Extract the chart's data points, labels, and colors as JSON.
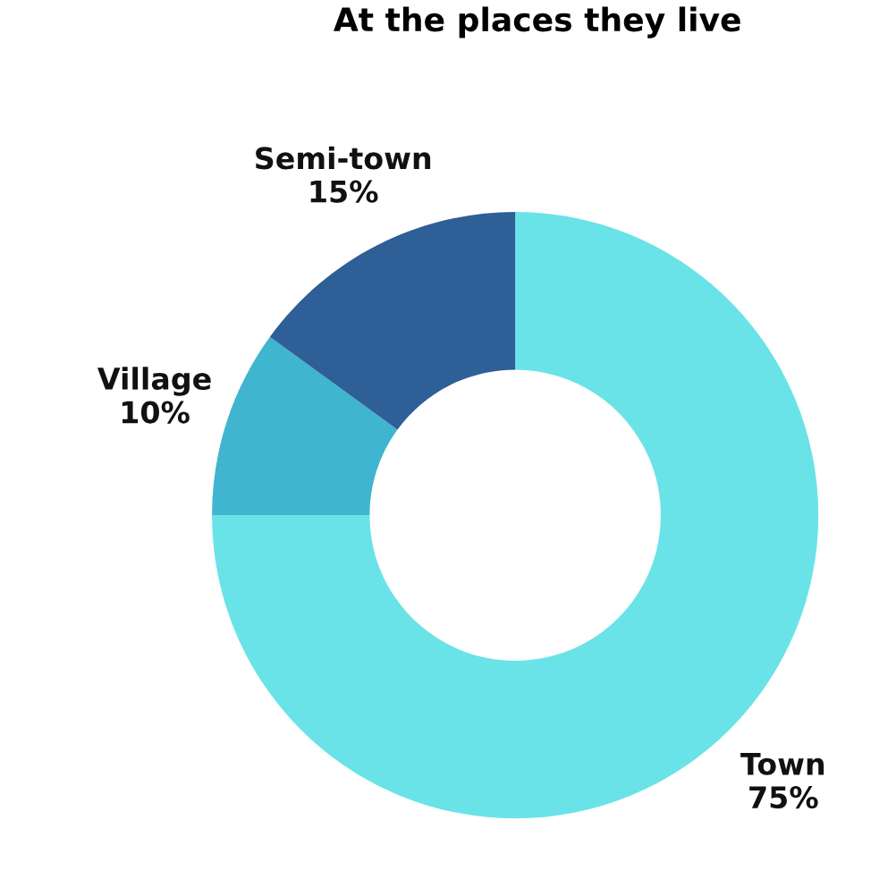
{
  "chart_data": {
    "type": "donut",
    "title": "At the places they live",
    "categories": [
      "Town",
      "Village",
      "Semi-town"
    ],
    "values": [
      75,
      10,
      15
    ],
    "colors": [
      "#6ae3e8",
      "#3fb5d0",
      "#2e5f96"
    ],
    "value_labels": [
      "75%",
      "10%",
      "15%"
    ]
  }
}
